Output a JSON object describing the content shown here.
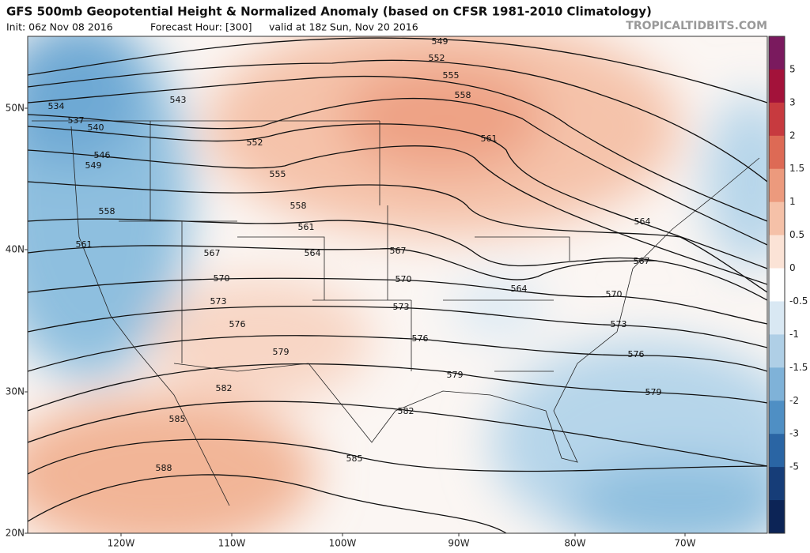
{
  "header": {
    "title": "GFS 500mb Geopotential Height & Normalized Anomaly (based on CFSR 1981-2010 Climatology)",
    "init": "Init: 06z Nov 08 2016",
    "forecast_hour": "Forecast Hour: [300]",
    "valid": "valid at 18z Sun, Nov 20 2016",
    "site": "TROPICALTIDBITS.COM"
  },
  "latitudes": [
    "50N",
    "40N",
    "30N",
    "20N"
  ],
  "longitudes": [
    "120W",
    "110W",
    "100W",
    "90W",
    "80W",
    "70W"
  ],
  "colorbar": [
    "5",
    "3",
    "2",
    "1.5",
    "1",
    "0.5",
    "0",
    "-0.5",
    "-1",
    "-1.5",
    "-2",
    "-3",
    "-5"
  ],
  "contour_labels": [
    "549",
    "552",
    "555",
    "558",
    "561",
    "564",
    "567",
    "570",
    "573",
    "576",
    "579",
    "534",
    "537",
    "540",
    "543",
    "546",
    "549",
    "552",
    "555",
    "558",
    "558",
    "561",
    "561",
    "564",
    "564",
    "567",
    "567",
    "570",
    "570",
    "573",
    "573",
    "576",
    "576",
    "579",
    "579",
    "582",
    "582",
    "585",
    "585",
    "588"
  ]
}
